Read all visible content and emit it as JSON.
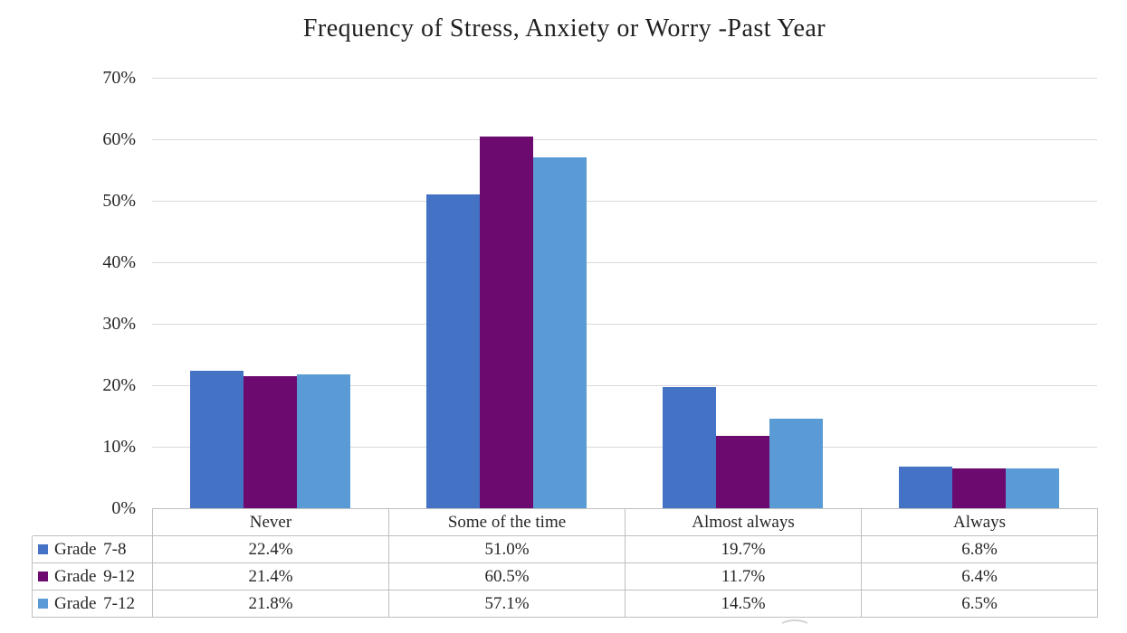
{
  "page": {
    "background": "#FFFFFF"
  },
  "chart_data": {
    "type": "bar",
    "title": "Frequency of Stress, Anxiety or Worry -Past Year",
    "categories": [
      "Never",
      "Some of the time",
      "Almost always",
      "Always"
    ],
    "series": [
      {
        "name": "Grade 7-8",
        "color": "#4472C4",
        "values": [
          22.4,
          51.0,
          19.7,
          6.8
        ]
      },
      {
        "name": "Grade 9-12",
        "color": "#6C0A70",
        "values": [
          21.4,
          60.5,
          11.7,
          6.4
        ]
      },
      {
        "name": "Grade 7-12",
        "color": "#5B9BD5",
        "values": [
          21.8,
          57.1,
          14.5,
          6.5
        ]
      }
    ],
    "xlabel": "",
    "ylabel": "",
    "ylim": [
      0,
      70
    ],
    "yticks": [
      {
        "value": 0,
        "label": "0%"
      },
      {
        "value": 10,
        "label": "10%"
      },
      {
        "value": 20,
        "label": "20%"
      },
      {
        "value": 30,
        "label": "30%"
      },
      {
        "value": 40,
        "label": "40%"
      },
      {
        "value": 50,
        "label": "50%"
      },
      {
        "value": 60,
        "label": "60%"
      },
      {
        "value": 70,
        "label": "70%"
      }
    ],
    "grid": true,
    "legend_position": "data-table-left",
    "value_decimals": 1,
    "value_suffix": "%"
  },
  "colors": {
    "gridline": "#D9D9D9",
    "axis_line": "#BFBFBF",
    "table_border": "#BFBFBF",
    "text": "#262626",
    "title_text": "#1F1F1F"
  }
}
